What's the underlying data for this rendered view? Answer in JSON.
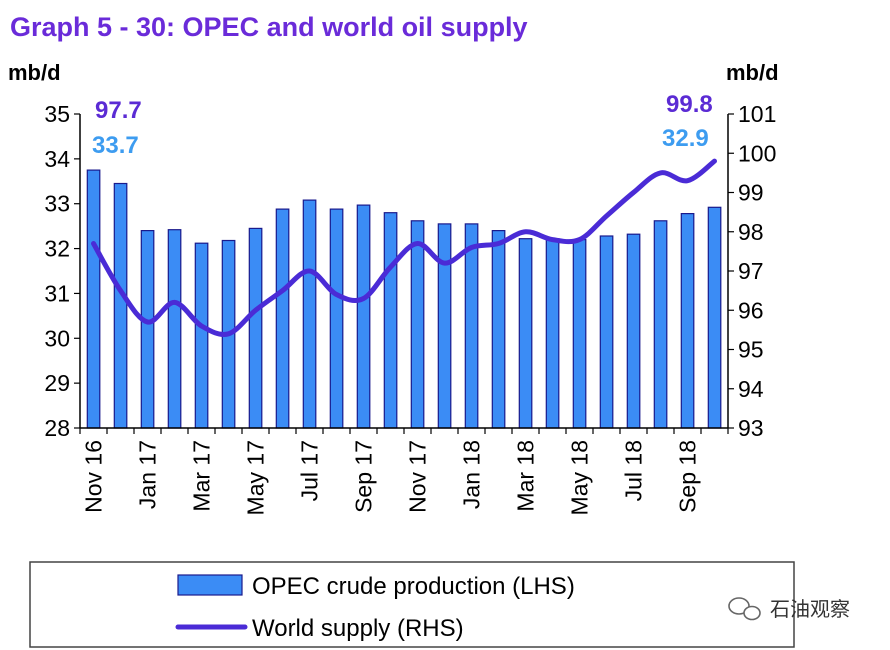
{
  "chart_data": {
    "type": "bar+line",
    "title": "Graph 5 - 30: OPEC and world oil supply",
    "y_left_label": "mb/d",
    "y_right_label": "mb/d",
    "y_left_range": [
      28,
      35
    ],
    "y_right_range": [
      93,
      101
    ],
    "y_left_ticks": [
      "28",
      "29",
      "30",
      "31",
      "32",
      "33",
      "34",
      "35"
    ],
    "y_right_ticks": [
      "93",
      "94",
      "95",
      "96",
      "97",
      "98",
      "99",
      "100",
      "101"
    ],
    "x_tick_labels": [
      "Nov 16",
      "Jan 17",
      "Mar 17",
      "May 17",
      "Jul 17",
      "Sep 17",
      "Nov 17",
      "Jan 18",
      "Mar 18",
      "May 18",
      "Jul 18",
      "Sep 18"
    ],
    "categories": [
      "Nov 16",
      "Dec 16",
      "Jan 17",
      "Feb 17",
      "Mar 17",
      "Apr 17",
      "May 17",
      "Jun 17",
      "Jul 17",
      "Aug 17",
      "Sep 17",
      "Oct 17",
      "Nov 17",
      "Dec 17",
      "Jan 18",
      "Feb 18",
      "Mar 18",
      "Apr 18",
      "May 18",
      "Jun 18",
      "Jul 18",
      "Aug 18",
      "Sep 18",
      "Oct 18"
    ],
    "series": [
      {
        "name": "OPEC crude production (LHS)",
        "type": "bar",
        "axis": "left",
        "color": "#3b8cf5",
        "values": [
          33.75,
          33.45,
          32.4,
          32.42,
          32.12,
          32.18,
          32.45,
          32.88,
          33.08,
          32.88,
          32.97,
          32.8,
          32.62,
          32.55,
          32.55,
          32.4,
          32.22,
          32.22,
          32.2,
          32.28,
          32.32,
          32.62,
          32.78,
          32.92
        ]
      },
      {
        "name": "World supply (RHS)",
        "type": "line",
        "axis": "right",
        "color": "#4a2bd6",
        "values": [
          97.7,
          96.5,
          95.7,
          96.2,
          95.6,
          95.4,
          96.0,
          96.5,
          97.0,
          96.4,
          96.3,
          97.1,
          97.7,
          97.2,
          97.6,
          97.7,
          98.0,
          97.8,
          97.8,
          98.4,
          99.0,
          99.5,
          99.3,
          99.8
        ]
      }
    ],
    "annotations": {
      "world_start": "97.7",
      "opec_start": "33.7",
      "world_end": "99.8",
      "opec_end": "32.9"
    },
    "legend_position": "bottom"
  },
  "watermark": {
    "text": "石油观察",
    "icon": "wechat-icon"
  }
}
